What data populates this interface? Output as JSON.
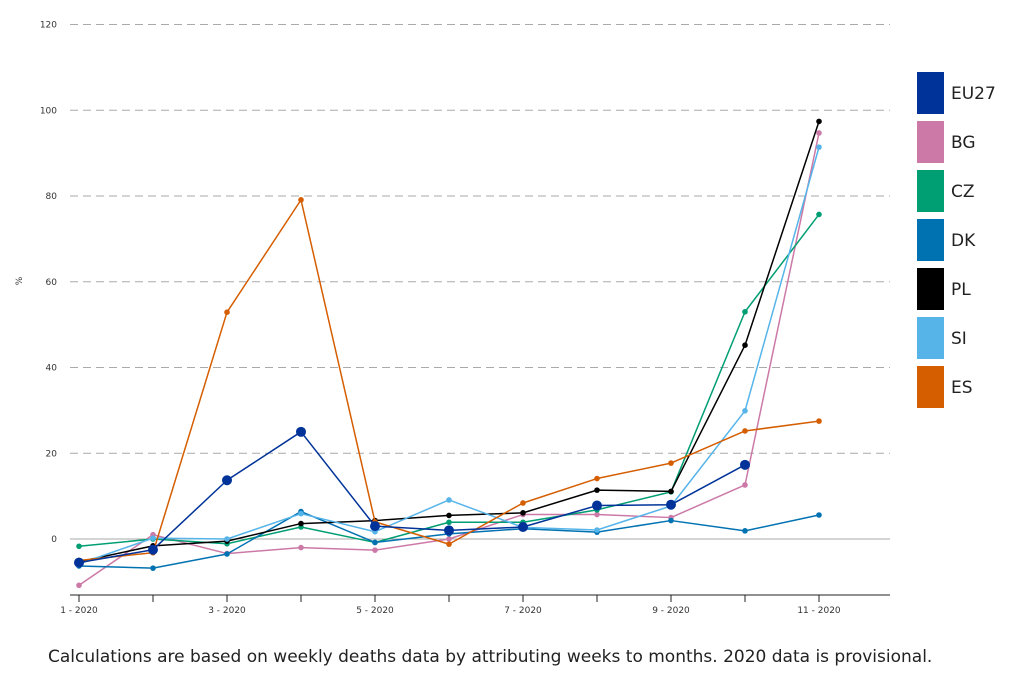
{
  "footnote": "Calculations are based on weekly deaths data by attributing weeks to months. 2020 data is provisional.",
  "chart_data": {
    "type": "line",
    "ylabel": "%",
    "ylim": [
      -13,
      120
    ],
    "yticks": [
      0,
      20,
      40,
      60,
      80,
      100,
      120
    ],
    "x": [
      1,
      2,
      3,
      4,
      5,
      6,
      7,
      8,
      9,
      10,
      11
    ],
    "xtick_labels": [
      {
        "x": 1,
        "label": "1 - 2020"
      },
      {
        "x": 3,
        "label": "3 - 2020"
      },
      {
        "x": 5,
        "label": "5 - 2020"
      },
      {
        "x": 7,
        "label": "7 - 2020"
      },
      {
        "x": 9,
        "label": "9 - 2020"
      },
      {
        "x": 11,
        "label": "11 - 2020"
      }
    ],
    "grid": "horizontal-dashed",
    "legend_position": "right",
    "series": [
      {
        "name": "EU27",
        "color": "#003399",
        "marker": "large",
        "values": [
          -5.5,
          -2.5,
          13.7,
          25.0,
          3.0,
          2.0,
          2.8,
          7.8,
          8.0,
          17.3,
          null
        ]
      },
      {
        "name": "BG",
        "color": "#cc79a7",
        "marker": "small",
        "values": [
          -10.8,
          1.0,
          -3.4,
          -2.0,
          -2.6,
          0.0,
          5.7,
          5.7,
          5.0,
          12.6,
          94.7
        ]
      },
      {
        "name": "CZ",
        "color": "#009e73",
        "marker": "small",
        "values": [
          -1.7,
          0.0,
          -1.1,
          2.8,
          -0.8,
          3.9,
          3.9,
          6.8,
          11.0,
          53.0,
          75.7
        ]
      },
      {
        "name": "DK",
        "color": "#0072b2",
        "marker": "small",
        "values": [
          -6.3,
          -6.8,
          -3.5,
          6.4,
          -0.8,
          1.2,
          2.4,
          1.6,
          4.3,
          1.9,
          5.6
        ]
      },
      {
        "name": "PL",
        "color": "#000000",
        "marker": "small",
        "values": [
          -5.3,
          -1.6,
          -0.5,
          3.6,
          4.3,
          5.5,
          6.1,
          11.4,
          11.1,
          45.2,
          97.4
        ]
      },
      {
        "name": "SI",
        "color": "#56b4e9",
        "marker": "small",
        "values": [
          -5.8,
          0.2,
          0.0,
          5.9,
          1.7,
          9.1,
          2.7,
          2.1,
          7.7,
          29.9,
          91.4
        ]
      },
      {
        "name": "ES",
        "color": "#d55e00",
        "marker": "small",
        "values": [
          -5.0,
          -3.2,
          52.9,
          79.1,
          4.0,
          -1.2,
          8.4,
          14.1,
          17.7,
          25.2,
          27.5
        ]
      }
    ]
  }
}
